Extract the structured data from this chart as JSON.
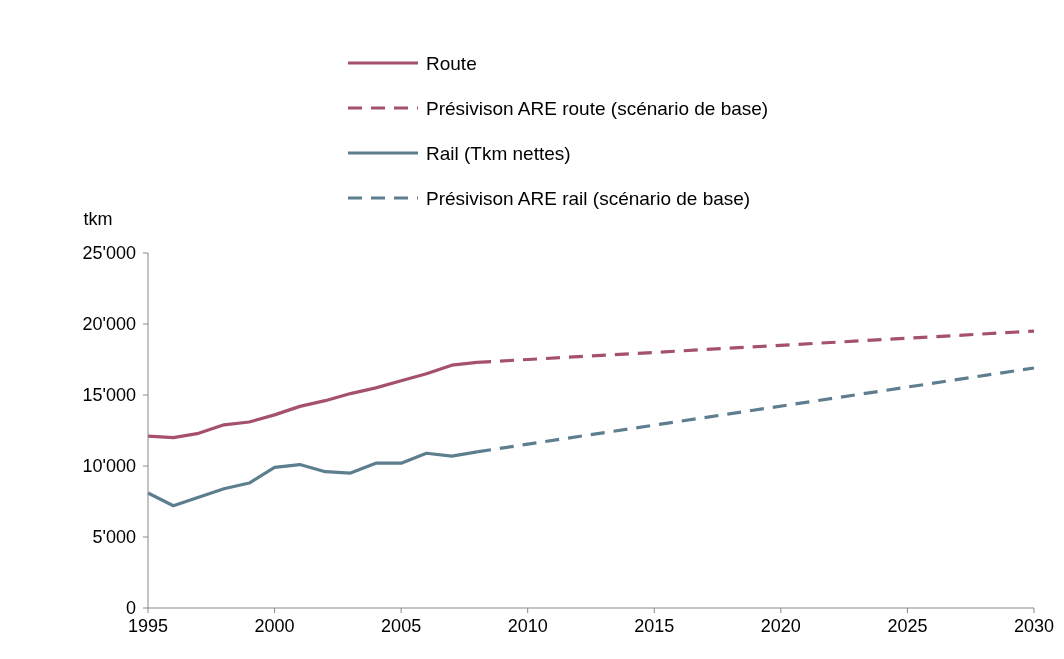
{
  "chart_data": {
    "type": "line",
    "ylabel": "tkm",
    "xlim": [
      1995,
      2030
    ],
    "xticks": [
      1995,
      2000,
      2005,
      2010,
      2015,
      2020,
      2025,
      2030
    ],
    "ylim": [
      0,
      25000
    ],
    "yticks": [
      0,
      {
        "value": 5000,
        "label": "5'000"
      },
      {
        "value": 10000,
        "label": "10'000"
      },
      {
        "value": 15000,
        "label": "15'000"
      },
      {
        "value": 20000,
        "label": "20'000"
      },
      {
        "value": 25000,
        "label": "25'000"
      }
    ],
    "grid": false,
    "legend": "top",
    "marker": "none",
    "series": [
      {
        "name": "Route",
        "color": "#a4506e",
        "line_style": "solid",
        "x": [
          1995,
          1996,
          1997,
          1998,
          1999,
          2000,
          2001,
          2002,
          2003,
          2004,
          2005,
          2006,
          2007,
          2008
        ],
        "values": [
          12100,
          12000,
          12300,
          12900,
          13100,
          13600,
          14200,
          14600,
          15100,
          15500,
          16000,
          16500,
          17100,
          17300
        ]
      },
      {
        "name": "Présivison ARE route (scénario de base)",
        "color": "#a4506e",
        "line_style": "dashed",
        "x": [
          2008,
          2030
        ],
        "values": [
          17300,
          19500
        ]
      },
      {
        "name": "Rail (Tkm nettes)",
        "color": "#5d7e8e",
        "line_style": "solid",
        "x": [
          1995,
          1996,
          1997,
          1998,
          1999,
          2000,
          2001,
          2002,
          2003,
          2004,
          2005,
          2006,
          2007,
          2008
        ],
        "values": [
          8100,
          7200,
          7800,
          8400,
          8800,
          9900,
          10100,
          9600,
          9500,
          10200,
          10200,
          10900,
          10700,
          11000
        ]
      },
      {
        "name": "Présivison ARE rail (scénario de base)",
        "color": "#5d7e8e",
        "line_style": "dashed",
        "x": [
          2008,
          2030
        ],
        "values": [
          11000,
          16900
        ]
      }
    ]
  }
}
